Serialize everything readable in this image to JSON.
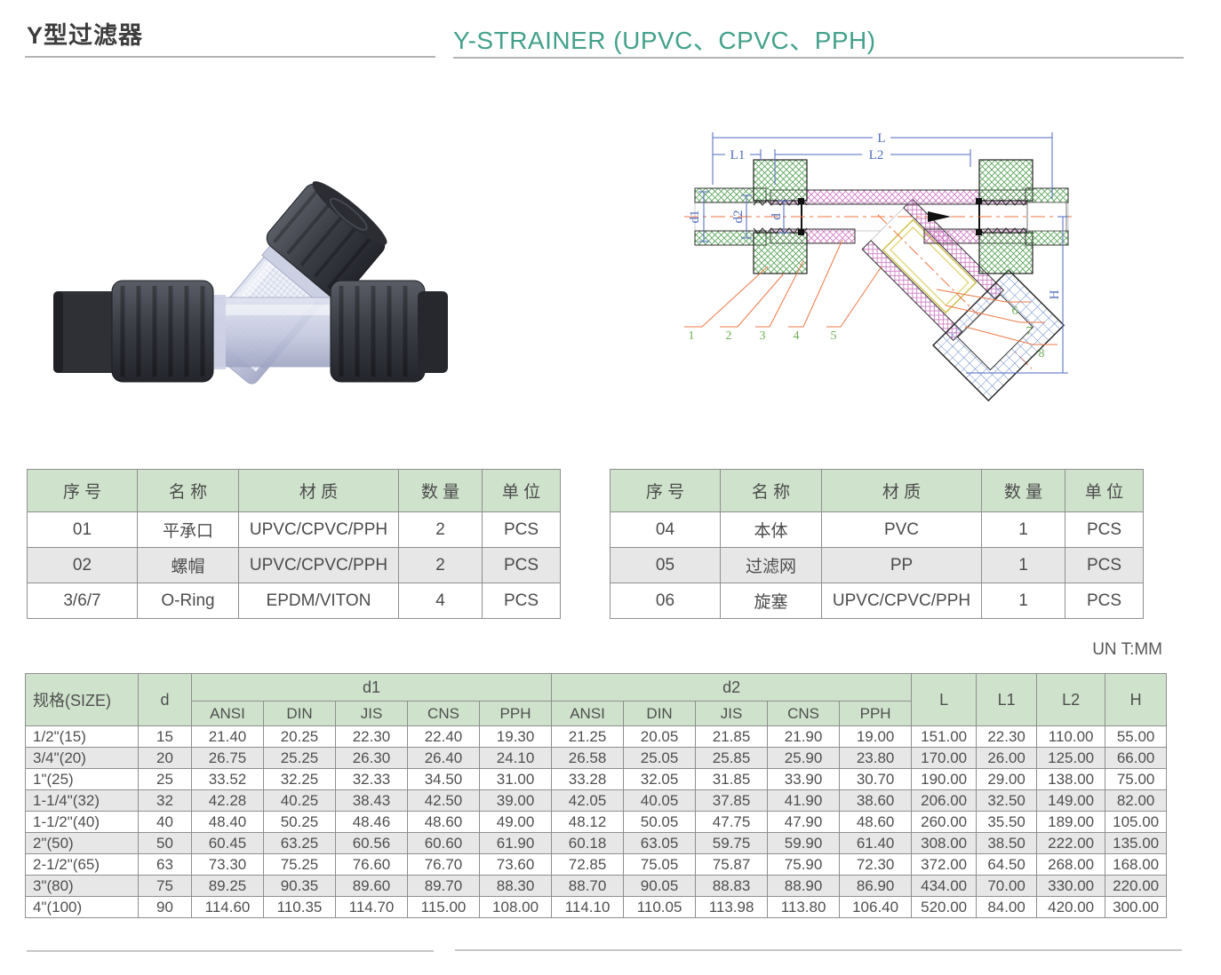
{
  "header": {
    "title_cn": "Y型过滤器",
    "title_en": "Y-STRAINER (UPVC、CPVC、PPH)"
  },
  "unit_note": "UN T:MM",
  "colors": {
    "accent": "#43a18b",
    "table_header_bg": "#cfe3cc",
    "alt_row_bg": "#e7e7e7",
    "dim_line_blue": "#4f6bbd",
    "leader_orange": "#ee7744",
    "part_number_green": "#6cb052"
  },
  "diagram": {
    "labels": {
      "L": "L",
      "L1": "L1",
      "L2": "L2",
      "d1": "d1",
      "d2": "d2",
      "d": "d",
      "H": "H"
    },
    "part_numbers": [
      "1",
      "2",
      "3",
      "4",
      "5",
      "6",
      "7",
      "8"
    ]
  },
  "parts_tables": {
    "headers": [
      "序 号",
      "名 称",
      "材 质",
      "数 量",
      "单 位"
    ],
    "left": {
      "rows": [
        [
          "01",
          "平承口",
          "UPVC/CPVC/PPH",
          "2",
          "PCS"
        ],
        [
          "02",
          "螺帽",
          "UPVC/CPVC/PPH",
          "2",
          "PCS"
        ],
        [
          "3/6/7",
          "O-Ring",
          "EPDM/VITON",
          "4",
          "PCS"
        ]
      ]
    },
    "right": {
      "rows": [
        [
          "04",
          "本体",
          "PVC",
          "1",
          "PCS"
        ],
        [
          "05",
          "过滤网",
          "PP",
          "1",
          "PCS"
        ],
        [
          "06",
          "旋塞",
          "UPVC/CPVC/PPH",
          "1",
          "PCS"
        ]
      ]
    }
  },
  "size_table": {
    "top_headers": {
      "size": "规格(SIZE)",
      "d": "d",
      "d1": "d1",
      "d2": "d2",
      "L": "L",
      "L1": "L1",
      "L2": "L2",
      "H": "H"
    },
    "sub_headers": [
      "ANSI",
      "DIN",
      "JIS",
      "CNS",
      "PPH",
      "ANSI",
      "DIN",
      "JIS",
      "CNS",
      "PPH"
    ],
    "rows": [
      [
        "1/2\"(15)",
        "15",
        "21.40",
        "20.25",
        "22.30",
        "22.40",
        "19.30",
        "21.25",
        "20.05",
        "21.85",
        "21.90",
        "19.00",
        "151.00",
        "22.30",
        "110.00",
        "55.00"
      ],
      [
        "3/4\"(20)",
        "20",
        "26.75",
        "25.25",
        "26.30",
        "26.40",
        "24.10",
        "26.58",
        "25.05",
        "25.85",
        "25.90",
        "23.80",
        "170.00",
        "26.00",
        "125.00",
        "66.00"
      ],
      [
        "1\"(25)",
        "25",
        "33.52",
        "32.25",
        "32.33",
        "34.50",
        "31.00",
        "33.28",
        "32.05",
        "31.85",
        "33.90",
        "30.70",
        "190.00",
        "29.00",
        "138.00",
        "75.00"
      ],
      [
        "1-1/4\"(32)",
        "32",
        "42.28",
        "40.25",
        "38.43",
        "42.50",
        "39.00",
        "42.05",
        "40.05",
        "37.85",
        "41.90",
        "38.60",
        "206.00",
        "32.50",
        "149.00",
        "82.00"
      ],
      [
        "1-1/2\"(40)",
        "40",
        "48.40",
        "50.25",
        "48.46",
        "48.60",
        "49.00",
        "48.12",
        "50.05",
        "47.75",
        "47.90",
        "48.60",
        "260.00",
        "35.50",
        "189.00",
        "105.00"
      ],
      [
        "2\"(50)",
        "50",
        "60.45",
        "63.25",
        "60.56",
        "60.60",
        "61.90",
        "60.18",
        "63.05",
        "59.75",
        "59.90",
        "61.40",
        "308.00",
        "38.50",
        "222.00",
        "135.00"
      ],
      [
        "2-1/2\"(65)",
        "63",
        "73.30",
        "75.25",
        "76.60",
        "76.70",
        "73.60",
        "72.85",
        "75.05",
        "75.87",
        "75.90",
        "72.30",
        "372.00",
        "64.50",
        "268.00",
        "168.00"
      ],
      [
        "3\"(80)",
        "75",
        "89.25",
        "90.35",
        "89.60",
        "89.70",
        "88.30",
        "88.70",
        "90.05",
        "88.83",
        "88.90",
        "86.90",
        "434.00",
        "70.00",
        "330.00",
        "220.00"
      ],
      [
        "4\"(100)",
        "90",
        "114.60",
        "110.35",
        "114.70",
        "115.00",
        "108.00",
        "114.10",
        "110.05",
        "113.98",
        "113.80",
        "106.40",
        "520.00",
        "84.00",
        "420.00",
        "300.00"
      ]
    ]
  }
}
